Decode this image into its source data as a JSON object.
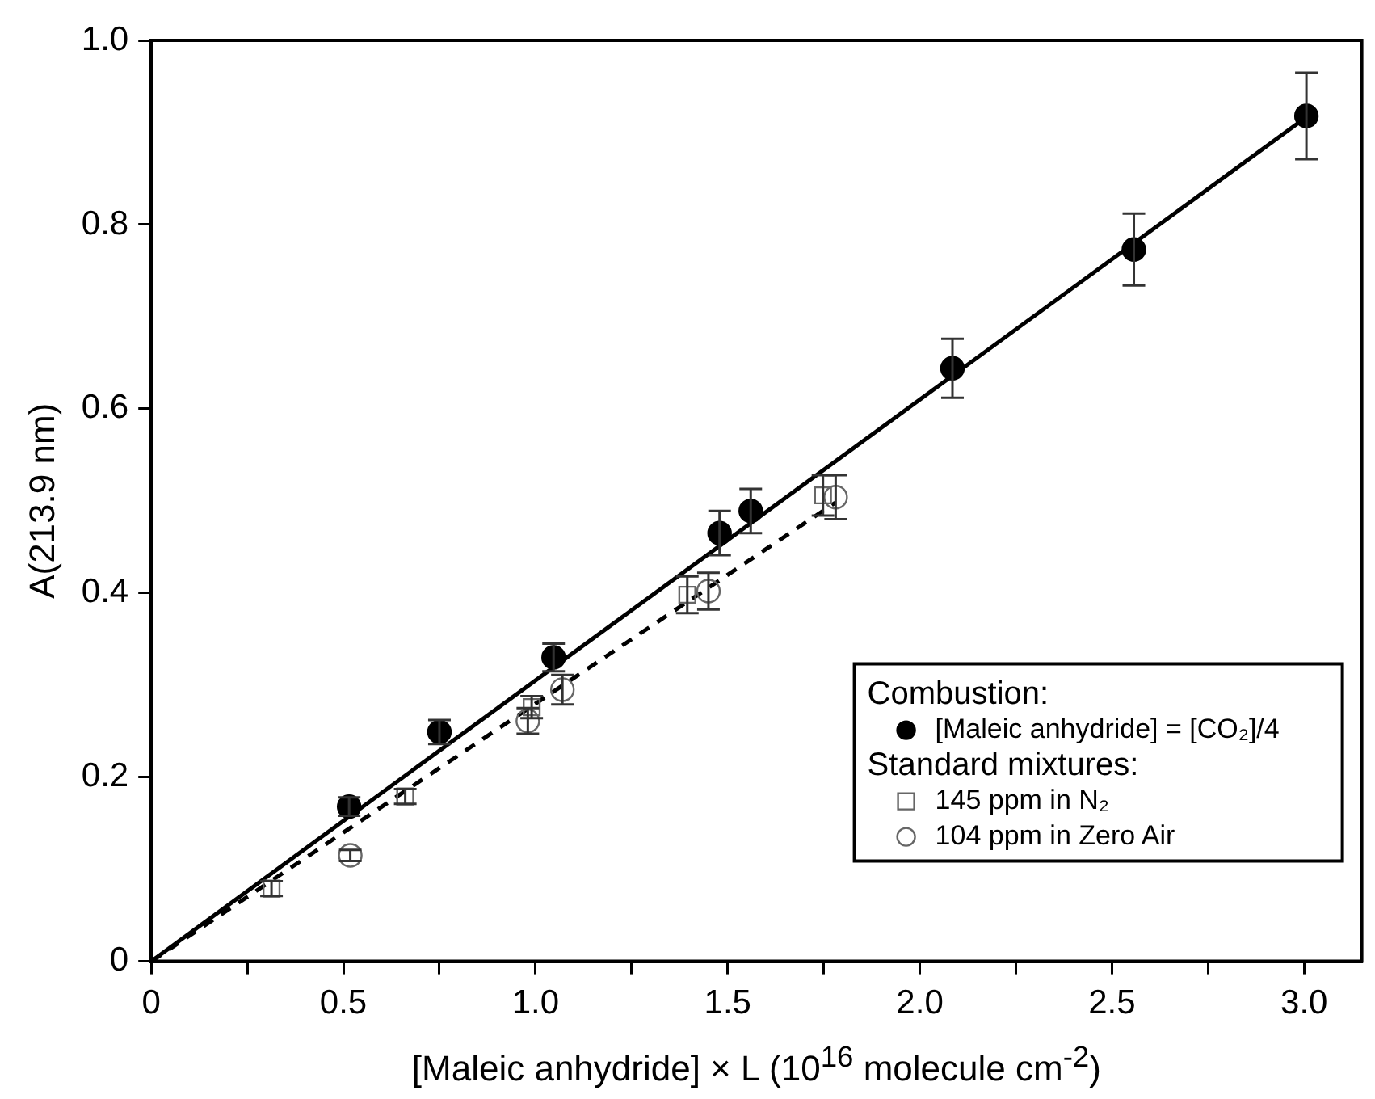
{
  "chart_data": {
    "type": "scatter",
    "xlabel": "[Maleic anhydride] × L (10$^{16}$ molecule cm$^{-2}$)",
    "ylabel": "A(213.9 nm)",
    "legend_title": "Combustion:",
    "annotations": [
      "Standard mixtures:"
    ],
    "xlim": [
      0,
      3.15
    ],
    "ylim": [
      0,
      1.0
    ],
    "xticks": [
      0,
      {
        "value": 0.25,
        "label": null
      },
      0.5,
      {
        "value": 0.75,
        "label": null
      },
      {
        "value": 1,
        "label": "1.0"
      },
      {
        "value": 1.25,
        "label": null
      },
      1.5,
      {
        "value": 1.75,
        "label": null
      },
      {
        "value": 2,
        "label": "2.0"
      },
      {
        "value": 2.25,
        "label": null
      },
      2.5,
      {
        "value": 2.75,
        "label": null
      },
      {
        "value": 3,
        "label": "3.0"
      }
    ],
    "yticks": [
      0,
      0.2,
      0.4,
      0.6,
      0.8,
      {
        "value": 1,
        "label": "1.0"
      }
    ],
    "grid": false,
    "legend": "bottom right",
    "series": [
      {
        "type": "line",
        "color": "#000000",
        "marker": "none",
        "line_style": "solid",
        "x": [
          0,
          3.02
        ],
        "values": [
          0,
          0.921
        ]
      },
      {
        "type": "line",
        "color": "#000000",
        "marker": "none",
        "line_style": "dashed",
        "x": [
          0,
          1.78
        ],
        "values": [
          0,
          0.498
        ]
      },
      {
        "name": "[Maleic anhydride] = [CO₂]/4",
        "color": "#000000",
        "marker": "circle",
        "x": [
          0.515,
          0.75,
          1.047,
          1.479,
          1.56,
          2.085,
          2.557,
          3.006
        ],
        "values": [
          0.168,
          0.249,
          0.33,
          0.465,
          0.489,
          0.644,
          0.773,
          0.918
        ],
        "errors": [
          0.01,
          0.013,
          0.015,
          0.024,
          0.024,
          0.032,
          0.039,
          0.047
        ]
      },
      {
        "name": "145 ppm in N₂",
        "color": "#666666",
        "marker": "square",
        "x": [
          0.313,
          0.661,
          0.99,
          1.395,
          1.748
        ],
        "values": [
          0.079,
          0.179,
          0.276,
          0.398,
          0.506
        ],
        "errors": [
          0.008,
          0.008,
          0.012,
          0.02,
          0.022
        ]
      },
      {
        "name": "104 ppm in Zero Air",
        "color": "#666666",
        "marker": "circle",
        "x": [
          0.518,
          0.98,
          1.07,
          1.45,
          1.781
        ],
        "values": [
          0.115,
          0.261,
          0.295,
          0.402,
          0.504
        ],
        "errors": [
          0.006,
          0.014,
          0.016,
          0.02,
          0.024
        ]
      }
    ]
  }
}
